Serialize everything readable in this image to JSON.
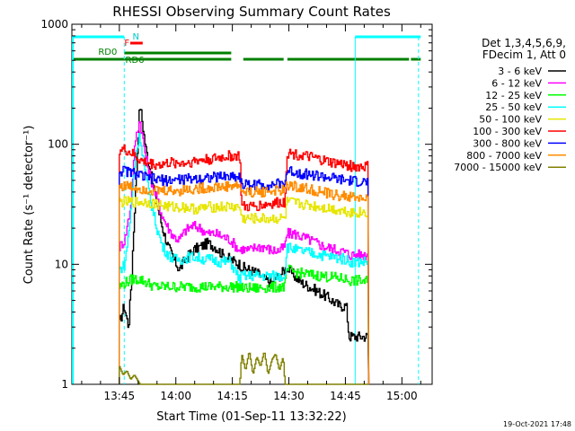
{
  "chart_data": {
    "type": "line",
    "title": "RHESSI Observing Summary Count Rates",
    "xlabel": "Start Time (01-Sep-11 13:32:22)",
    "ylabel": "Count Rate (s⁻¹ detector⁻¹)",
    "xscale": "linear",
    "yscale": "log",
    "xlim": [
      "13:32:22",
      "15:08:00"
    ],
    "ylim": [
      1,
      1000
    ],
    "x_unit": "minutes since 13:32:22",
    "x_ticks": [
      {
        "label": "13:45",
        "t": 12.6
      },
      {
        "label": "14:00",
        "t": 27.6
      },
      {
        "label": "14:15",
        "t": 42.6
      },
      {
        "label": "14:30",
        "t": 57.6
      },
      {
        "label": "14:45",
        "t": 72.6
      },
      {
        "label": "15:00",
        "t": 87.6
      }
    ],
    "y_ticks": [
      {
        "label": "1",
        "v": 1
      },
      {
        "label": "10",
        "v": 10
      },
      {
        "label": "100",
        "v": 100
      },
      {
        "label": "1000",
        "v": 1000
      }
    ],
    "legend_header": [
      "Det 1,3,4,5,6,9,",
      "FDecim 1, Att 0"
    ],
    "legend_position": "right",
    "timestamp": "19-Oct-2021 17:48",
    "flag_labels": {
      "F": "F",
      "N": "N",
      "RD0": "RD0",
      "RD6": "RD6"
    },
    "series": [
      {
        "name": "3 - 6 keV",
        "color": "#000000",
        "x": [
          12.6,
          13.8,
          15.0,
          15.8,
          16.8,
          18.0,
          19.5,
          21.0,
          22.5,
          24.0,
          25.5,
          27.0,
          28.5,
          30.0,
          32.0,
          34.0,
          36.0,
          38.0,
          40.0,
          42.0,
          44.5,
          45.0,
          47.0,
          49.0,
          51.0,
          53.0,
          55.0,
          56.5,
          57.0,
          59.0,
          61.0,
          63.0,
          65.0,
          67.0,
          69.0,
          71.0,
          72.8,
          73.5,
          76.0,
          78.8
        ],
        "y": [
          3.2,
          4.5,
          3.0,
          8.0,
          40,
          220,
          95,
          55,
          32,
          20,
          14,
          11,
          9,
          11,
          13,
          14,
          15,
          14,
          12,
          11,
          10,
          9.5,
          9,
          8.5,
          7.5,
          7,
          8,
          9,
          9.5,
          8,
          7,
          6.5,
          6,
          5.5,
          5,
          4.5,
          4.5,
          2.5,
          2.5,
          2.5
        ]
      },
      {
        "name": "6 - 12 keV",
        "color": "#ff00ff",
        "x": [
          12.6,
          14.0,
          15.5,
          16.8,
          18.0,
          19.5,
          21.0,
          22.5,
          24.0,
          25.5,
          27.0,
          28.5,
          30.0,
          32.0,
          34.0,
          36.0,
          38.0,
          40.0,
          42.0,
          44.5,
          45.0,
          47.0,
          49.0,
          51.0,
          53.0,
          55.0,
          56.5,
          57.0,
          59.0,
          61.0,
          63.0,
          65.0,
          67.0,
          69.0,
          71.0,
          72.8,
          73.5,
          76.0,
          78.8
        ],
        "y": [
          14,
          16,
          30,
          110,
          160,
          80,
          50,
          35,
          25,
          20,
          17,
          16,
          19,
          21,
          20,
          18,
          18,
          17,
          16,
          13,
          13.5,
          13,
          14,
          14,
          13,
          13,
          14,
          18,
          18,
          17,
          16,
          15,
          14,
          13.5,
          13,
          12.5,
          12,
          12,
          12
        ]
      },
      {
        "name": "12 - 25 keV",
        "color": "#00ff00",
        "x": [
          12.6,
          14.0,
          16.0,
          18.0,
          20.0,
          22.0,
          24.0,
          26.0,
          28.0,
          30.0,
          32.0,
          34.0,
          36.0,
          38.0,
          40.0,
          42.0,
          44.5,
          45.0,
          47.0,
          49.0,
          51.0,
          53.0,
          55.0,
          56.5,
          57.0,
          60.0,
          63.0,
          66.0,
          69.0,
          72.8,
          73.5,
          76.0,
          78.8
        ],
        "y": [
          6.5,
          7,
          7.5,
          7.5,
          7,
          6.5,
          6.5,
          6.5,
          6.5,
          6.5,
          6.5,
          6.5,
          6.5,
          6.5,
          6.5,
          6.5,
          6.5,
          6.3,
          6.3,
          6.3,
          6.4,
          6.4,
          6.5,
          6.5,
          9,
          8.5,
          8.2,
          8,
          7.8,
          7.5,
          7.3,
          7.3,
          7.2
        ]
      },
      {
        "name": "25 - 50 keV",
        "color": "#00ffff",
        "x": [
          12.6,
          14.0,
          15.5,
          16.8,
          18.0,
          19.5,
          21.0,
          22.5,
          24.0,
          25.5,
          27.0,
          29.0,
          31.0,
          33.0,
          35.0,
          37.0,
          39.0,
          41.0,
          42.0,
          44.5,
          45.0,
          47.0,
          49.0,
          51.0,
          53.0,
          55.0,
          56.5,
          57.0,
          60.0,
          63.0,
          66.0,
          69.0,
          72.8,
          73.5,
          76.0,
          78.8
        ],
        "y": [
          9,
          10,
          25,
          80,
          120,
          55,
          32,
          20,
          14,
          12,
          11,
          11,
          11.5,
          11.5,
          11,
          11,
          10.5,
          10.5,
          10.5,
          7.5,
          8,
          8,
          8,
          8,
          8,
          8,
          8,
          14,
          13,
          12.5,
          12,
          11.5,
          11,
          10.5,
          10.5,
          10.5
        ]
      },
      {
        "name": "50 - 100 keV",
        "color": "#e6e600",
        "x": [
          12.6,
          14.0,
          16.0,
          18.0,
          20.0,
          22.0,
          24.0,
          26.0,
          28.0,
          30.0,
          32.0,
          34.0,
          36.0,
          38.0,
          40.0,
          42.0,
          44.5,
          45.0,
          47.0,
          50.0,
          53.0,
          56.5,
          57.0,
          60.0,
          63.0,
          66.0,
          69.0,
          72.0,
          75.0,
          78.8
        ],
        "y": [
          33,
          33,
          33,
          33,
          33,
          32,
          31,
          30,
          30,
          30,
          29,
          29,
          30,
          30,
          30,
          30,
          30,
          24,
          24,
          24,
          24,
          24,
          33,
          32,
          31,
          30,
          29,
          28,
          27,
          27
        ]
      },
      {
        "name": "100 - 300 keV",
        "color": "#ff0000",
        "x": [
          12.6,
          14.0,
          15.5,
          17.0,
          18.5,
          20.0,
          22.0,
          24.0,
          26.0,
          28.0,
          30.0,
          32.0,
          34.0,
          36.0,
          38.0,
          40.0,
          42.0,
          44.5,
          45.0,
          47.0,
          50.0,
          53.0,
          56.5,
          57.0,
          60.0,
          63.0,
          66.0,
          69.0,
          72.0,
          75.0,
          78.8
        ],
        "y": [
          90,
          90,
          85,
          78,
          72,
          70,
          68,
          68,
          70,
          70,
          70,
          72,
          74,
          75,
          76,
          78,
          80,
          80,
          30,
          30,
          31,
          32,
          33,
          85,
          82,
          78,
          74,
          70,
          68,
          65,
          65
        ]
      },
      {
        "name": "300 - 800 keV",
        "color": "#0000ff",
        "x": [
          12.6,
          14.0,
          16.0,
          18.0,
          20.0,
          22.0,
          24.0,
          26.0,
          28.0,
          30.0,
          32.0,
          34.0,
          36.0,
          38.0,
          40.0,
          42.0,
          44.5,
          45.0,
          47.0,
          50.0,
          53.0,
          56.5,
          57.0,
          60.0,
          63.0,
          66.0,
          69.0,
          72.0,
          75.0,
          78.8
        ],
        "y": [
          60,
          60,
          58,
          55,
          52,
          51,
          50,
          50,
          51,
          51,
          52,
          52,
          53,
          53,
          54,
          54,
          54,
          46,
          46,
          46,
          46,
          47,
          60,
          58,
          56,
          54,
          52,
          50,
          49,
          48
        ]
      },
      {
        "name": "800 - 7000 keV",
        "color": "#ff8c00",
        "x": [
          12.6,
          14.0,
          16.0,
          18.0,
          20.0,
          22.0,
          24.0,
          26.0,
          28.0,
          30.0,
          32.0,
          34.0,
          36.0,
          38.0,
          40.0,
          42.0,
          44.5,
          45.0,
          47.0,
          50.0,
          53.0,
          56.5,
          57.0,
          60.0,
          63.0,
          66.0,
          69.0,
          72.0,
          75.0,
          78.8
        ],
        "y": [
          45,
          45,
          44,
          43,
          42,
          41,
          41,
          41,
          41,
          42,
          42,
          43,
          43,
          44,
          44,
          45,
          45,
          40,
          40,
          40,
          41,
          41,
          46,
          44,
          42,
          40,
          38,
          37,
          36,
          35
        ]
      },
      {
        "name": "7000 - 15000 keV",
        "color": "#808000",
        "x": [
          12.6,
          13.5,
          14.5,
          15.5,
          16.5,
          18.0,
          22.0,
          26.0,
          30.0,
          34.0,
          38.0,
          42.0,
          44.5,
          45.0,
          46.0,
          47.0,
          48.0,
          49.0,
          50.0,
          51.0,
          52.0,
          53.0,
          54.0,
          55.0,
          56.0,
          56.5,
          57.0,
          60.0,
          64.0,
          68.0,
          72.0,
          75.0,
          78.8
        ],
        "y": [
          1.4,
          1.2,
          1.3,
          1.1,
          1.2,
          1.0,
          1.0,
          1.0,
          1.0,
          1.0,
          1.0,
          1.0,
          1.0,
          1.8,
          1.3,
          1.9,
          1.2,
          1.7,
          1.4,
          1.9,
          1.2,
          1.6,
          1.8,
          1.3,
          1.7,
          1.0,
          1.0,
          1.0,
          1.0,
          1.0,
          1.0,
          1.0,
          1.0
        ]
      }
    ],
    "flags": {
      "saa_cyan": [
        [
          0,
          13.9
        ],
        [
          75.2,
          92.6
        ]
      ],
      "rd0_green": [
        [
          0,
          42.3
        ],
        [
          45.5,
          56.2
        ],
        [
          57.2,
          89.5
        ],
        [
          90.0,
          92.6
        ]
      ],
      "flare_red": [
        [
          15.5,
          18.8
        ]
      ],
      "night_markers": [
        13.9,
        75.2,
        92.0
      ]
    }
  }
}
